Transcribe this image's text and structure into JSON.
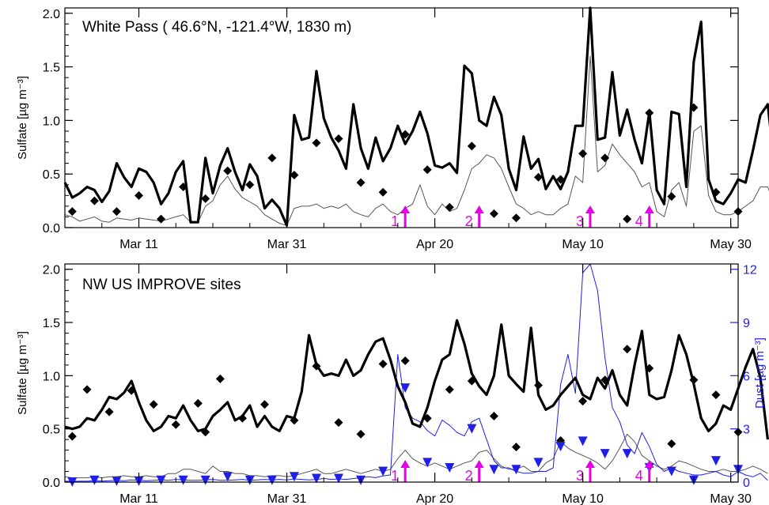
{
  "colors": {
    "model_total": "#000000",
    "model_component": "#555555",
    "observed": "#000000",
    "dust": "#1f1fe6",
    "event_arrow": "#e600e6"
  },
  "chart_data": [
    {
      "type": "line",
      "panel": "top",
      "annotation": "White Pass ( 46.6°N, -121.4°W,  1830 m)",
      "ylabel": "Sulfate [µg m⁻³]",
      "ylim": [
        0,
        2.05
      ],
      "yticks": [
        0.0,
        0.5,
        1.0,
        1.5,
        2.0
      ],
      "ytick_labels": [
        "0.0",
        "0.5",
        "1.0",
        "1.5",
        "2.0"
      ],
      "xlim": [
        0,
        91
      ],
      "xticks": [
        10,
        30,
        50,
        70,
        90
      ],
      "xtick_labels": [
        "Mar 11",
        "Mar 31",
        "Apr 20",
        "May 10",
        "May 30"
      ],
      "events": [
        {
          "label": "1",
          "x": 46
        },
        {
          "label": "2",
          "x": 56
        },
        {
          "label": "3",
          "x": 71
        },
        {
          "label": "4",
          "x": 79
        }
      ],
      "series": [
        {
          "role": "model_total",
          "values": [
            0.42,
            0.28,
            0.32,
            0.38,
            0.35,
            0.24,
            0.34,
            0.6,
            0.47,
            0.38,
            0.55,
            0.52,
            0.42,
            0.22,
            0.32,
            0.52,
            0.62,
            0.05,
            0.05,
            0.65,
            0.32,
            0.58,
            0.74,
            0.52,
            0.35,
            0.59,
            0.48,
            0.18,
            0.26,
            0.18,
            0.02,
            1.05,
            0.82,
            0.84,
            1.46,
            1.02,
            0.84,
            0.72,
            0.55,
            1.15,
            0.74,
            0.55,
            0.84,
            0.62,
            0.74,
            0.95,
            0.78,
            0.9,
            1.08,
            0.88,
            0.58,
            0.56,
            0.6,
            0.51,
            1.51,
            1.44,
            1.0,
            0.95,
            1.22,
            1.05,
            0.55,
            0.35,
            0.85,
            0.55,
            0.64,
            0.36,
            0.48,
            0.36,
            0.52,
            0.95,
            0.95,
            2.1,
            0.82,
            0.84,
            1.45,
            0.86,
            1.1,
            0.82,
            0.6,
            1.08,
            0.35,
            0.22,
            1.08,
            1.06,
            0.38,
            1.55,
            1.92,
            0.45,
            0.25,
            0.22,
            0.32,
            0.45,
            0.42,
            0.72,
            1.05,
            1.15,
            0.52,
            0.08,
            0.12,
            0.15
          ]
        },
        {
          "role": "model_component",
          "values": [
            0.12,
            0.1,
            0.06,
            0.08,
            0.1,
            0.06,
            0.05,
            0.09,
            0.08,
            0.07,
            0.09,
            0.08,
            0.07,
            0.06,
            0.08,
            0.1,
            0.12,
            0.05,
            0.05,
            0.2,
            0.25,
            0.4,
            0.48,
            0.36,
            0.28,
            0.24,
            0.2,
            0.12,
            0.08,
            0.04,
            0.02,
            0.18,
            0.2,
            0.2,
            0.22,
            0.18,
            0.2,
            0.18,
            0.22,
            0.15,
            0.12,
            0.1,
            0.18,
            0.22,
            0.15,
            0.12,
            0.18,
            0.22,
            0.4,
            0.2,
            0.12,
            0.22,
            0.15,
            0.18,
            0.35,
            0.55,
            0.6,
            0.68,
            0.65,
            0.55,
            0.38,
            0.22,
            0.18,
            0.12,
            0.15,
            0.12,
            0.12,
            0.18,
            0.22,
            0.48,
            0.42,
            1.6,
            0.52,
            0.58,
            0.78,
            0.68,
            0.6,
            0.52,
            0.38,
            0.42,
            0.15,
            0.1,
            0.35,
            0.42,
            0.2,
            0.9,
            0.95,
            0.3,
            0.15,
            0.12,
            0.12,
            0.15,
            0.2,
            0.25,
            0.38,
            0.38,
            0.2,
            0.05,
            0.1,
            0.08
          ]
        },
        {
          "role": "observed_diamonds",
          "points": [
            [
              1,
              0.15
            ],
            [
              4,
              0.25
            ],
            [
              7,
              0.15
            ],
            [
              10,
              0.3
            ],
            [
              13,
              0.08
            ],
            [
              16,
              0.38
            ],
            [
              19,
              0.27
            ],
            [
              22,
              0.53
            ],
            [
              25,
              0.4
            ],
            [
              28,
              0.65
            ],
            [
              31,
              0.49
            ],
            [
              34,
              0.79
            ],
            [
              37,
              0.83
            ],
            [
              40,
              0.42
            ],
            [
              43,
              0.33
            ],
            [
              46,
              0.87
            ],
            [
              49,
              0.54
            ],
            [
              52,
              0.19
            ],
            [
              55,
              0.76
            ],
            [
              58,
              0.13
            ],
            [
              61,
              0.09
            ],
            [
              64,
              0.47
            ],
            [
              67,
              0.45
            ],
            [
              70,
              0.69
            ],
            [
              73,
              0.65
            ],
            [
              76,
              0.08
            ],
            [
              79,
              1.07
            ],
            [
              82,
              0.29
            ],
            [
              85,
              1.12
            ],
            [
              88,
              0.33
            ],
            [
              91,
              0.15
            ]
          ]
        }
      ]
    },
    {
      "type": "line",
      "panel": "bottom",
      "annotation": "NW US IMPROVE sites",
      "ylabel": "Sulfate [µg m⁻³]",
      "y2label": "Dust [µg m⁻³]",
      "ylim": [
        0,
        2.05
      ],
      "y2lim": [
        0,
        12.3
      ],
      "yticks": [
        0.0,
        0.5,
        1.0,
        1.5,
        2.0
      ],
      "ytick_labels": [
        "0.0",
        "0.5",
        "1.0",
        "1.5",
        "2.0"
      ],
      "y2ticks": [
        0,
        3,
        6,
        9,
        12
      ],
      "y2tick_labels": [
        "0",
        "3",
        "6",
        "9",
        "12"
      ],
      "xlim": [
        0,
        91
      ],
      "xticks": [
        10,
        30,
        50,
        70,
        90
      ],
      "xtick_labels": [
        "Mar 11",
        "Mar 31",
        "Apr 20",
        "May 10",
        "May 30"
      ],
      "events": [
        {
          "label": "1",
          "x": 46
        },
        {
          "label": "2",
          "x": 56
        },
        {
          "label": "3",
          "x": 71
        },
        {
          "label": "4",
          "x": 79
        }
      ],
      "series": [
        {
          "role": "model_total",
          "values": [
            0.52,
            0.5,
            0.52,
            0.6,
            0.58,
            0.68,
            0.8,
            0.78,
            0.84,
            0.95,
            0.75,
            0.58,
            0.48,
            0.52,
            0.62,
            0.6,
            0.72,
            0.58,
            0.48,
            0.5,
            0.62,
            0.68,
            0.75,
            0.58,
            0.62,
            0.72,
            0.52,
            0.62,
            0.52,
            0.48,
            0.62,
            0.6,
            0.85,
            1.38,
            1.1,
            1.0,
            1.02,
            1.0,
            1.15,
            1.0,
            1.05,
            1.2,
            1.32,
            1.35,
            1.15,
            0.9,
            0.75,
            0.55,
            0.52,
            0.7,
            0.95,
            1.15,
            1.2,
            1.52,
            1.3,
            1.02,
            0.9,
            0.82,
            1.0,
            1.48,
            1.0,
            0.92,
            0.85,
            1.45,
            0.82,
            0.68,
            0.72,
            0.82,
            0.9,
            0.98,
            0.82,
            0.78,
            0.98,
            0.88,
            1.05,
            0.82,
            0.72,
            1.1,
            1.42,
            0.82,
            0.78,
            0.8,
            1.05,
            1.38,
            1.2,
            0.92,
            0.6,
            0.48,
            0.55,
            0.72,
            0.68,
            0.88,
            1.08,
            1.25,
            0.98,
            0.4
          ]
        },
        {
          "role": "model_component",
          "values": [
            0.05,
            0.04,
            0.04,
            0.04,
            0.05,
            0.04,
            0.05,
            0.05,
            0.06,
            0.05,
            0.05,
            0.06,
            0.05,
            0.05,
            0.08,
            0.08,
            0.12,
            0.12,
            0.1,
            0.08,
            0.15,
            0.1,
            0.1,
            0.08,
            0.08,
            0.06,
            0.06,
            0.05,
            0.06,
            0.06,
            0.05,
            0.06,
            0.08,
            0.1,
            0.12,
            0.08,
            0.08,
            0.1,
            0.12,
            0.1,
            0.08,
            0.1,
            0.12,
            0.1,
            0.12,
            0.22,
            0.3,
            0.22,
            0.18,
            0.15,
            0.18,
            0.15,
            0.12,
            0.15,
            0.18,
            0.2,
            0.28,
            0.3,
            0.22,
            0.15,
            0.12,
            0.12,
            0.15,
            0.1,
            0.1,
            0.18,
            0.22,
            0.38,
            0.32,
            0.28,
            0.25,
            0.22,
            0.18,
            0.12,
            0.2,
            0.32,
            0.45,
            0.38,
            0.25,
            0.2,
            0.15,
            0.12,
            0.15,
            0.2,
            0.18,
            0.15,
            0.12,
            0.1,
            0.1,
            0.12,
            0.1,
            0.1,
            0.12,
            0.15,
            0.12,
            0.08
          ]
        },
        {
          "role": "dust_line",
          "axis": "y2",
          "values": [
            0.05,
            0.04,
            0.05,
            0.05,
            0.08,
            0.06,
            0.08,
            0.1,
            0.08,
            0.12,
            0.1,
            0.08,
            0.1,
            0.12,
            0.1,
            0.15,
            0.12,
            0.1,
            0.1,
            0.12,
            0.15,
            0.1,
            0.1,
            0.12,
            0.15,
            0.1,
            0.12,
            0.15,
            0.12,
            0.15,
            0.12,
            0.18,
            0.15,
            0.12,
            0.15,
            0.2,
            0.15,
            0.18,
            0.15,
            0.2,
            0.25,
            0.3,
            0.25,
            0.35,
            0.4,
            7.2,
            4.2,
            3.6,
            3.4,
            2.9,
            2.6,
            3.5,
            3.2,
            2.8,
            2.6,
            3.4,
            3.6,
            2.4,
            1.2,
            0.8,
            0.8,
            0.6,
            0.5,
            0.5,
            0.6,
            0.6,
            0.8,
            5.5,
            7.2,
            5.0,
            11.8,
            12.8,
            10.8,
            7.0,
            4.2,
            3.4,
            2.1,
            1.6,
            2.8,
            2.0,
            1.0,
            0.6,
            0.8,
            0.6,
            0.5,
            0.4,
            0.4,
            0.5,
            0.6,
            0.4,
            0.3,
            0.6,
            0.4,
            0.3,
            0.5,
            0.1
          ]
        },
        {
          "role": "observed_diamonds",
          "points": [
            [
              1,
              0.43
            ],
            [
              3,
              0.87
            ],
            [
              6,
              0.66
            ],
            [
              9,
              0.86
            ],
            [
              12,
              0.73
            ],
            [
              15,
              0.54
            ],
            [
              18,
              0.74
            ],
            [
              19,
              0.47
            ],
            [
              21,
              0.97
            ],
            [
              24,
              0.6
            ],
            [
              27,
              0.73
            ],
            [
              31,
              0.58
            ],
            [
              34,
              1.09
            ],
            [
              37,
              0.56
            ],
            [
              40,
              0.45
            ],
            [
              43,
              1.11
            ],
            [
              46,
              1.14
            ],
            [
              49,
              0.6
            ],
            [
              52,
              0.87
            ],
            [
              55,
              0.95
            ],
            [
              58,
              0.62
            ],
            [
              61,
              0.33
            ],
            [
              64,
              0.91
            ],
            [
              67,
              0.39
            ],
            [
              70,
              0.76
            ],
            [
              73,
              0.96
            ],
            [
              76,
              1.25
            ],
            [
              79,
              1.07
            ],
            [
              82,
              0.36
            ],
            [
              85,
              0.96
            ],
            [
              88,
              0.82
            ],
            [
              91,
              0.47
            ]
          ]
        },
        {
          "role": "dust_triangles",
          "axis": "y2",
          "points": [
            [
              1,
              0.0
            ],
            [
              4,
              0.1
            ],
            [
              7,
              0.05
            ],
            [
              10,
              0.05
            ],
            [
              13,
              0.1
            ],
            [
              16,
              0.1
            ],
            [
              19,
              0.1
            ],
            [
              22,
              0.3
            ],
            [
              25,
              0.1
            ],
            [
              28,
              0.1
            ],
            [
              31,
              0.3
            ],
            [
              34,
              0.2
            ],
            [
              37,
              0.2
            ],
            [
              40,
              0.1
            ],
            [
              43,
              0.6
            ],
            [
              46,
              5.3
            ],
            [
              49,
              1.1
            ],
            [
              52,
              0.8
            ],
            [
              55,
              3.0
            ],
            [
              58,
              0.7
            ],
            [
              61,
              0.7
            ],
            [
              64,
              1.1
            ],
            [
              67,
              2.0
            ],
            [
              70,
              2.3
            ],
            [
              73,
              1.6
            ],
            [
              76,
              1.6
            ],
            [
              79,
              0.8
            ],
            [
              82,
              0.6
            ],
            [
              85,
              0.1
            ],
            [
              88,
              1.2
            ],
            [
              91,
              0.7
            ]
          ]
        }
      ]
    }
  ]
}
